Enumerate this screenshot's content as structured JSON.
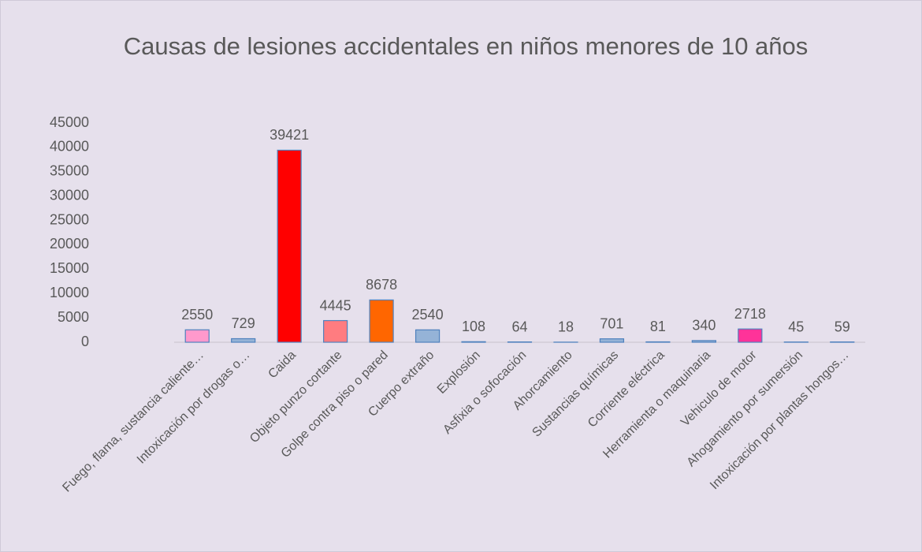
{
  "chart_data": {
    "type": "bar",
    "title": "Causas de lesiones accidentales en niños menores de 10 años",
    "categories": [
      "Fuego, flama, sustancia caliente…",
      "Intoxicación por drogas o…",
      "Caida",
      "Objeto punzo cortante",
      "Golpe contra piso o pared",
      "Cuerpo extraño",
      "Explosión",
      "Asfixia o sofocación",
      "Ahorcamiento",
      "Sustancias químicas",
      "Corriente eléctrica",
      "Herramienta o maquinaria",
      "Vehiculo de motor",
      "Ahogamiento por sumersión",
      "Intoxicación por plantas hongos…"
    ],
    "values": [
      2550,
      729,
      39421,
      4445,
      8678,
      2540,
      108,
      64,
      18,
      701,
      81,
      340,
      2718,
      45,
      59
    ],
    "colors": [
      "#ff99cc",
      "#95b3d7",
      "#ff0000",
      "#ff7c80",
      "#ff6600",
      "#95b3d7",
      "#95b3d7",
      "#95b3d7",
      "#95b3d7",
      "#95b3d7",
      "#95b3d7",
      "#95b3d7",
      "#ff3399",
      "#95b3d7",
      "#95b3d7"
    ],
    "ylim": [
      0,
      45000
    ],
    "yticks": [
      0,
      5000,
      10000,
      15000,
      20000,
      25000,
      30000,
      35000,
      40000,
      45000
    ],
    "grid": false
  }
}
